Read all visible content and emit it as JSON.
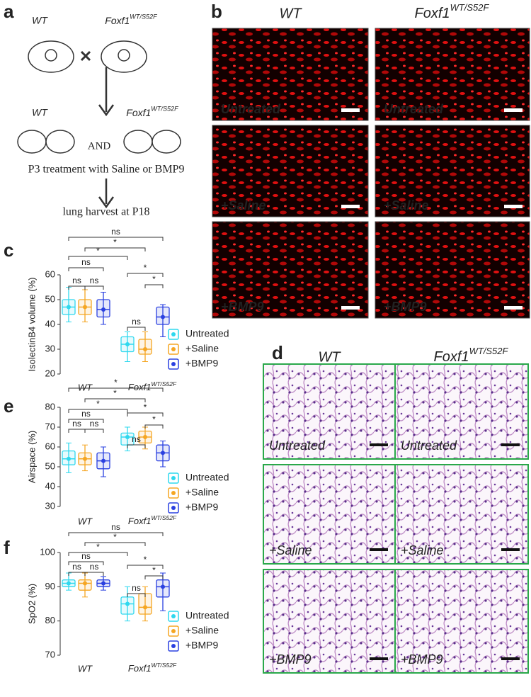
{
  "figure": {
    "a": {
      "label": "a",
      "wt_top": "WT",
      "foxf1_top": {
        "base": "Foxf1",
        "sup": "WT/S52F"
      },
      "wt_mid": "WT",
      "foxf1_mid": {
        "base": "Foxf1",
        "sup": "WT/S52F"
      },
      "and": "AND",
      "treatment": "P3 treatment with Saline or BMP9",
      "harvest": "lung harvest at P18"
    },
    "b": {
      "label": "b",
      "wt": "WT",
      "foxf1": {
        "base": "Foxf1",
        "sup": "WT/S52F"
      },
      "rows": [
        "Untreated",
        "+Saline",
        "+BMP9"
      ]
    },
    "d": {
      "label": "d",
      "wt": "WT",
      "foxf1": {
        "base": "Foxf1",
        "sup": "WT/S52F"
      },
      "rows": [
        "Untreated",
        "+Saline",
        "+BMP9"
      ]
    }
  },
  "chart_data": [
    {
      "type": "box",
      "panel_label": "c",
      "ylabel": "IsolectinB4 volume (%)",
      "ylim": [
        20,
        60
      ],
      "yticks": [
        20,
        30,
        40,
        50,
        60
      ],
      "categories": [
        "WT",
        {
          "base": "Foxf1",
          "sup": "WT/S52F"
        }
      ],
      "series": [
        {
          "name": "Untreated",
          "color": "#2fd8ee",
          "values": [
            {
              "min": 41,
              "q1": 44,
              "median": 47,
              "q3": 50,
              "max": 55
            },
            {
              "min": 25,
              "q1": 29,
              "median": 32,
              "q3": 35,
              "max": 37
            }
          ]
        },
        {
          "name": "+Saline",
          "color": "#f5a623",
          "values": [
            {
              "min": 41,
              "q1": 44,
              "median": 47,
              "q3": 50,
              "max": 54
            },
            {
              "min": 25,
              "q1": 28,
              "median": 30,
              "q3": 34,
              "max": 37
            }
          ]
        },
        {
          "name": "+BMP9",
          "color": "#2a40e0",
          "values": [
            {
              "min": 40,
              "q1": 43,
              "median": 46,
              "q3": 50,
              "max": 53
            },
            {
              "min": 35,
              "q1": 40,
              "median": 43,
              "q3": 47,
              "max": 48
            }
          ]
        }
      ],
      "annotations": [
        "ns",
        "*",
        "*",
        "ns",
        "ns",
        "ns",
        "*",
        "*",
        "ns"
      ]
    },
    {
      "type": "box",
      "panel_label": "e",
      "ylabel": "Airspace (%)",
      "ylim": [
        30,
        80
      ],
      "yticks": [
        30,
        40,
        50,
        60,
        70,
        80
      ],
      "categories": [
        "WT",
        {
          "base": "Foxf1",
          "sup": "WT/S52F"
        }
      ],
      "series": [
        {
          "name": "Untreated",
          "color": "#2fd8ee",
          "values": [
            {
              "min": 47,
              "q1": 51,
              "median": 54,
              "q3": 58,
              "max": 62
            },
            {
              "min": 58,
              "q1": 61,
              "median": 65,
              "q3": 67,
              "max": 70
            }
          ]
        },
        {
          "name": "+Saline",
          "color": "#f5a623",
          "values": [
            {
              "min": 48,
              "q1": 51,
              "median": 54,
              "q3": 57,
              "max": 61
            },
            {
              "min": 59,
              "q1": 62,
              "median": 65,
              "q3": 68,
              "max": 70
            }
          ]
        },
        {
          "name": "+BMP9",
          "color": "#2a40e0",
          "values": [
            {
              "min": 45,
              "q1": 49,
              "median": 53,
              "q3": 57,
              "max": 60
            },
            {
              "min": 50,
              "q1": 53,
              "median": 57,
              "q3": 61,
              "max": 63
            }
          ]
        }
      ],
      "annotations": [
        "*",
        "*",
        "*",
        "ns",
        "ns",
        "ns",
        "*",
        "*",
        "ns"
      ]
    },
    {
      "type": "box",
      "panel_label": "f",
      "ylabel": "SpO2 (%)",
      "ylim": [
        70,
        100
      ],
      "yticks": [
        70,
        80,
        90,
        100
      ],
      "categories": [
        "WT",
        {
          "base": "Foxf1",
          "sup": "WT/S52F"
        }
      ],
      "series": [
        {
          "name": "Untreated",
          "color": "#2fd8ee",
          "values": [
            {
              "min": 89,
              "q1": 90,
              "median": 91,
              "q3": 92,
              "max": 94
            },
            {
              "min": 80,
              "q1": 82,
              "median": 85,
              "q3": 87,
              "max": 90
            }
          ]
        },
        {
          "name": "+Saline",
          "color": "#f5a623",
          "values": [
            {
              "min": 87,
              "q1": 89,
              "median": 91,
              "q3": 92,
              "max": 94
            },
            {
              "min": 80,
              "q1": 82,
              "median": 84,
              "q3": 88,
              "max": 90
            }
          ]
        },
        {
          "name": "+BMP9",
          "color": "#2a40e0",
          "values": [
            {
              "min": 89,
              "q1": 90,
              "median": 91,
              "q3": 92,
              "max": 93
            },
            {
              "min": 83,
              "q1": 87,
              "median": 90,
              "q3": 92,
              "max": 94
            }
          ]
        }
      ],
      "annotations": [
        "ns",
        "*",
        "*",
        "ns",
        "ns",
        "ns",
        "*",
        "*",
        "ns"
      ]
    }
  ]
}
